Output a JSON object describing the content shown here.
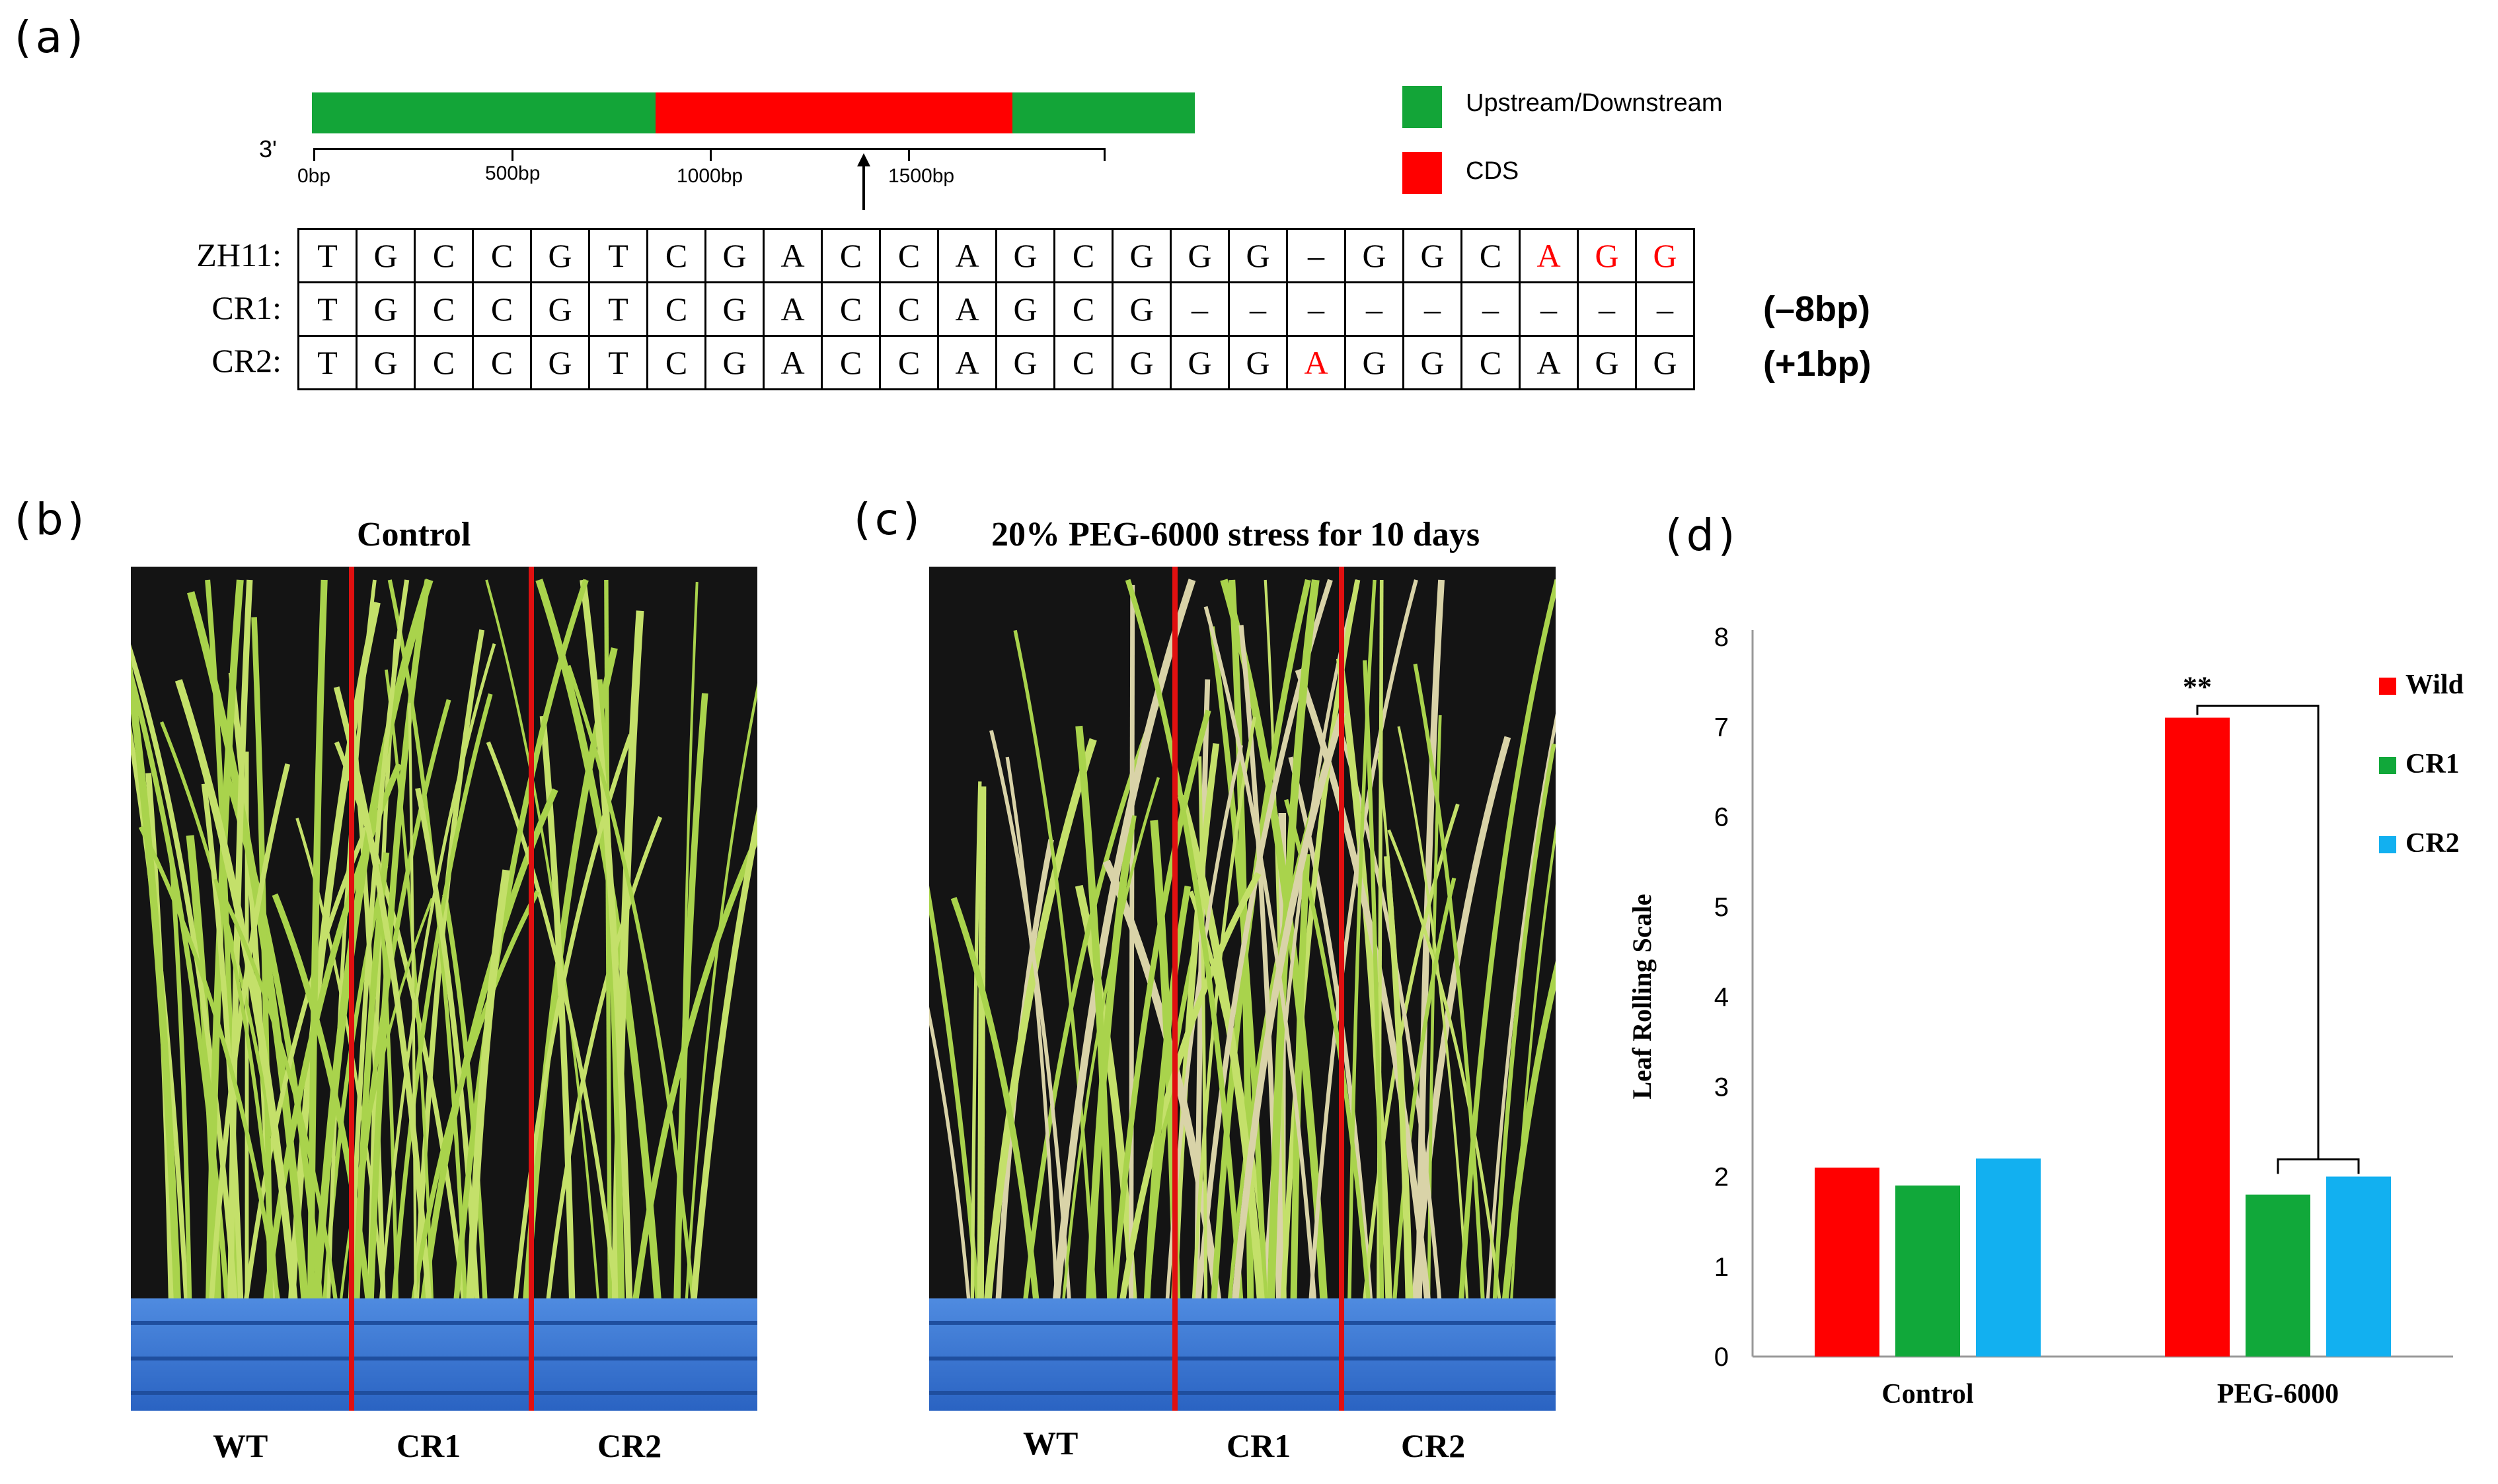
{
  "panel_a": {
    "label": "(a)",
    "gene_bar": {
      "end_label": "3'",
      "ticks": [
        "0bp",
        "500bp",
        "1000bp",
        "1500bp"
      ]
    },
    "legend": [
      {
        "label": "Upstream/Downstream",
        "color": "#13a538"
      },
      {
        "label": "CDS",
        "color": "#ff0000"
      }
    ],
    "sequences": [
      {
        "name": "ZH11:",
        "bases": [
          "T",
          "G",
          "C",
          "C",
          "G",
          "T",
          "C",
          "G",
          "A",
          "C",
          "C",
          "A",
          "G",
          "C",
          "G",
          "G",
          "G",
          "–",
          "G",
          "G",
          "C",
          "A",
          "G",
          "G"
        ],
        "highlight": [
          21,
          22,
          23
        ],
        "note": ""
      },
      {
        "name": "CR1:",
        "bases": [
          "T",
          "G",
          "C",
          "C",
          "G",
          "T",
          "C",
          "G",
          "A",
          "C",
          "C",
          "A",
          "G",
          "C",
          "G",
          "–",
          "–",
          "–",
          "–",
          "–",
          "–",
          "–",
          "–",
          "–"
        ],
        "highlight": [],
        "note": "(–8bp)"
      },
      {
        "name": "CR2:",
        "bases": [
          "T",
          "G",
          "C",
          "C",
          "G",
          "T",
          "C",
          "G",
          "A",
          "C",
          "C",
          "A",
          "G",
          "C",
          "G",
          "G",
          "G",
          "A",
          "G",
          "G",
          "C",
          "A",
          "G",
          "G"
        ],
        "highlight": [
          17
        ],
        "note": "(+1bp)"
      }
    ]
  },
  "panel_b": {
    "label": "(b)",
    "title": "Control",
    "groups": [
      "WT",
      "CR1",
      "CR2"
    ]
  },
  "panel_c": {
    "label": "(c)",
    "title": "20% PEG-6000 stress for 10 days",
    "groups": [
      "WT",
      "CR1",
      "CR2"
    ]
  },
  "panel_d": {
    "label": "(d)",
    "significance": "**"
  },
  "chart_data": {
    "type": "bar",
    "categories": [
      "Control",
      "PEG-6000"
    ],
    "series": [
      {
        "name": "Wild",
        "values": [
          2.1,
          7.1
        ],
        "color": "#ff0000"
      },
      {
        "name": "CR1",
        "values": [
          1.9,
          1.8
        ],
        "color": "#11a83a"
      },
      {
        "name": "CR2",
        "values": [
          2.2,
          2.0
        ],
        "color": "#12b0f0"
      }
    ],
    "ylabel": "Leaf Rolling Scale",
    "xlabel": "",
    "ylim": [
      0,
      8
    ],
    "yticks": [
      0,
      1,
      2,
      3,
      4,
      5,
      6,
      7,
      8
    ],
    "legend_position": "right",
    "grid": false
  }
}
